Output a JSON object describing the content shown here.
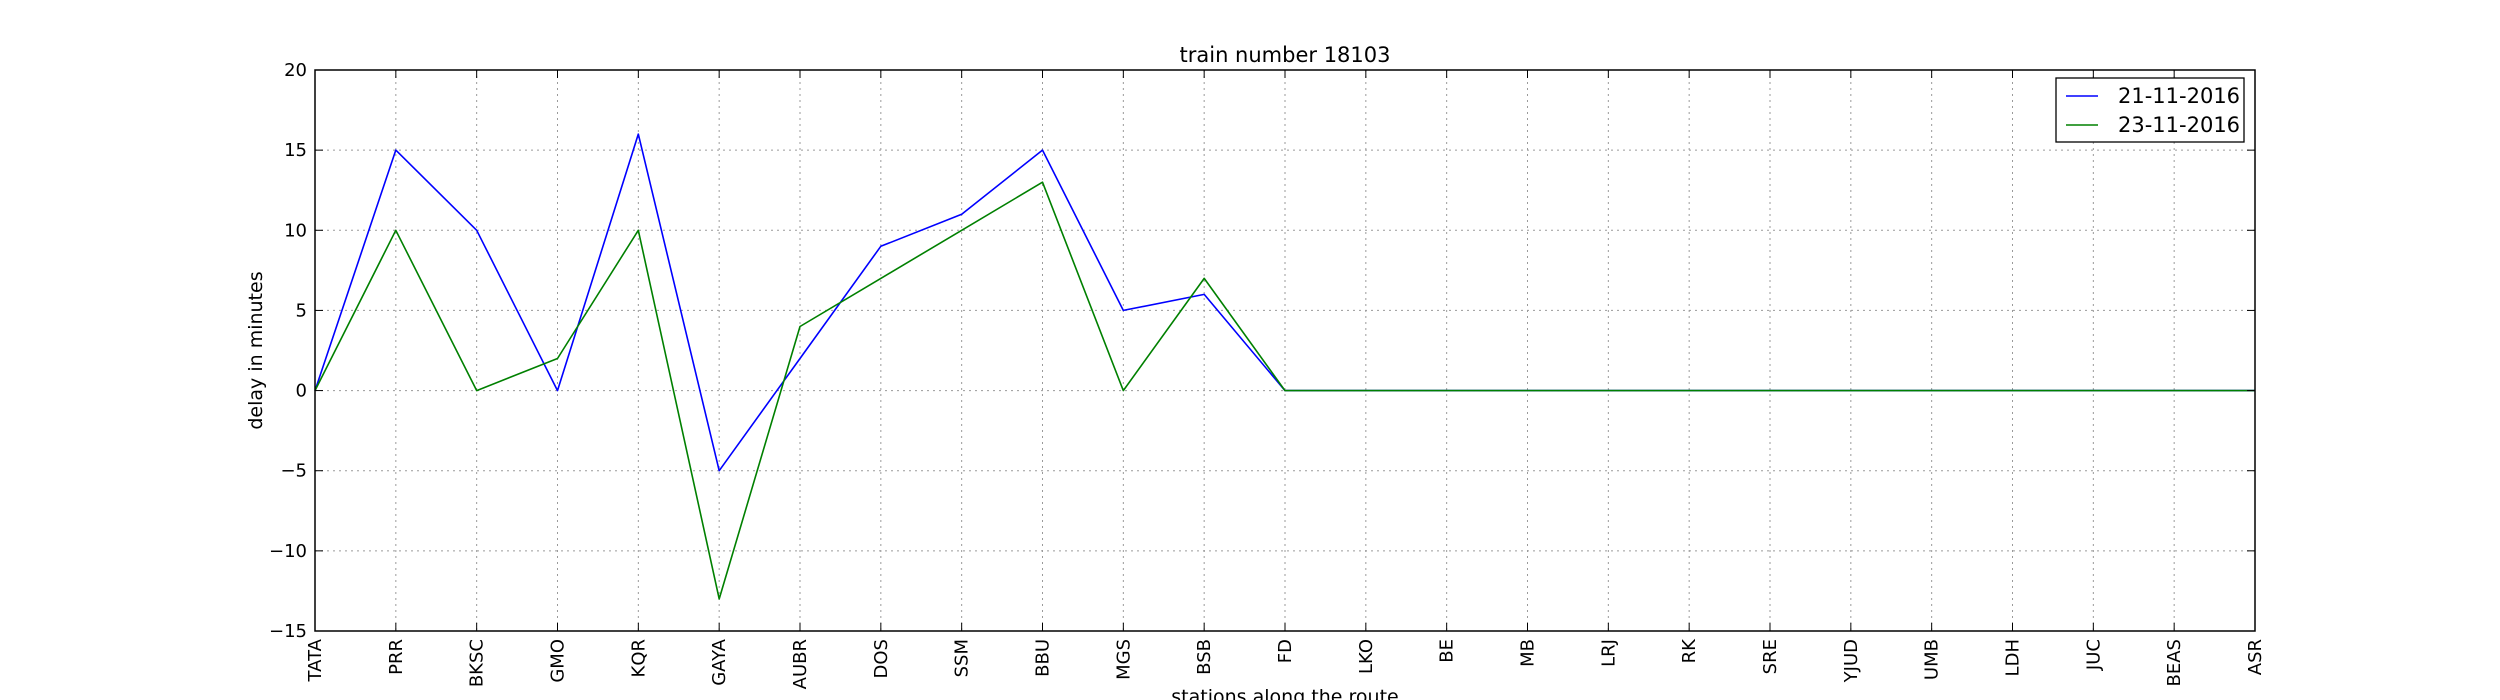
{
  "chart_data": {
    "type": "line",
    "title": "train number 18103",
    "xlabel": "stations along the route",
    "ylabel": "delay in minutes",
    "ylim": [
      -15,
      20
    ],
    "yticks": [
      -15,
      -10,
      -5,
      0,
      5,
      10,
      15,
      20
    ],
    "ytick_labels": [
      "−15",
      "−10",
      "−5",
      "0",
      "5",
      "10",
      "15",
      "20"
    ],
    "grid": true,
    "legend_position": "top-right",
    "categories": [
      "TATA",
      "PRR",
      "BKSC",
      "GMO",
      "KQR",
      "GAYA",
      "AUBR",
      "DOS",
      "SSM",
      "BBU",
      "MGS",
      "BSB",
      "FD",
      "LKO",
      "BE",
      "MB",
      "LRJ",
      "RK",
      "SRE",
      "YJUD",
      "UMB",
      "LDH",
      "JUC",
      "BEAS",
      "ASR"
    ],
    "series": [
      {
        "name": "21-11-2016",
        "color": "#0000ff",
        "values": [
          0,
          15,
          10,
          0,
          16,
          -5,
          2,
          9,
          11,
          15,
          5,
          6,
          0,
          0,
          0,
          0,
          0,
          0,
          0,
          0,
          0,
          0,
          0,
          0,
          0
        ]
      },
      {
        "name": "23-11-2016",
        "color": "#008000",
        "values": [
          0,
          10,
          0,
          2,
          10,
          -13,
          4,
          7,
          10,
          13,
          0,
          7,
          0,
          0,
          0,
          0,
          0,
          0,
          0,
          0,
          0,
          0,
          0,
          0,
          0
        ]
      }
    ]
  }
}
